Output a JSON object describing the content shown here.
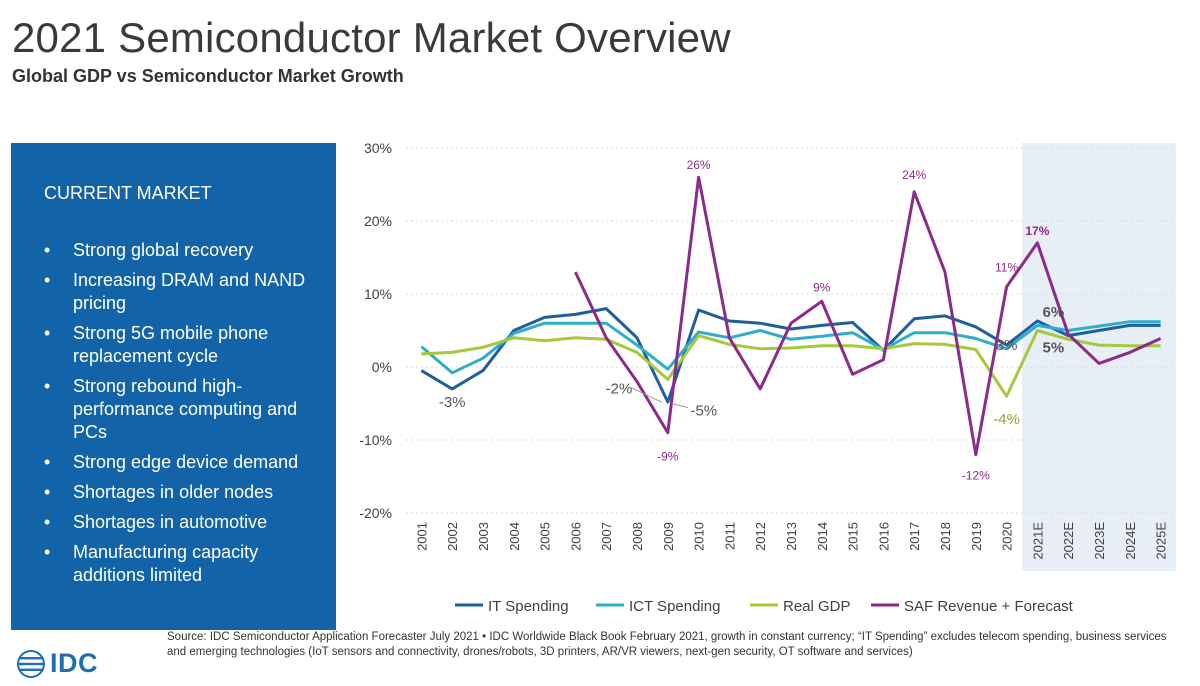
{
  "header": {
    "title": "2021 Semiconductor Market Overview",
    "subtitle": "Global GDP vs Semiconductor Market Growth"
  },
  "panel": {
    "heading": "CURRENT MARKET",
    "bullets": [
      "Strong global recovery",
      "Increasing DRAM and NAND pricing",
      "Strong 5G mobile phone replacement cycle",
      "Strong rebound high-performance computing and PCs",
      "Strong edge device demand",
      "Shortages in older nodes",
      "Shortages in automotive",
      "Manufacturing capacity additions limited"
    ]
  },
  "chart_data": {
    "type": "line",
    "categories": [
      "2001",
      "2002",
      "2003",
      "2004",
      "2005",
      "2006",
      "2007",
      "2008",
      "2009",
      "2010",
      "2011",
      "2012",
      "2013",
      "2014",
      "2015",
      "2016",
      "2017",
      "2018",
      "2019",
      "2020",
      "2021E",
      "2022E",
      "2023E",
      "2024E",
      "2025E"
    ],
    "ylim": [
      -20,
      30
    ],
    "yticks": [
      -20,
      -10,
      0,
      10,
      20,
      30
    ],
    "ytick_labels": [
      "-20%",
      "-10%",
      "0%",
      "10%",
      "20%",
      "30%"
    ],
    "forecast_region": {
      "from": "2021E",
      "to": "2025E",
      "color": "#e8eef6"
    },
    "series": [
      {
        "name": "IT Spending",
        "color": "#1f5f9e",
        "values": [
          -0.5,
          -3,
          -0.5,
          5,
          6.8,
          7.2,
          8,
          4,
          -4.8,
          7.8,
          6.3,
          6,
          5.2,
          5.7,
          6.1,
          2.3,
          6.6,
          7,
          5.5,
          3,
          6.3,
          4.3,
          5,
          5.7,
          5.7
        ]
      },
      {
        "name": "ICT Spending",
        "color": "#2eaec8",
        "values": [
          2.8,
          -0.8,
          1.2,
          4.6,
          6,
          6,
          6,
          3,
          -0.3,
          4.8,
          4,
          5,
          3.8,
          4.2,
          4.7,
          2.4,
          4.7,
          4.7,
          3.9,
          2.5,
          5.7,
          5,
          5.6,
          6.2,
          6.2
        ]
      },
      {
        "name": "Real GDP",
        "color": "#a6c83c",
        "values": [
          1.8,
          2,
          2.7,
          4,
          3.6,
          4,
          3.8,
          2,
          -1.7,
          4.3,
          3.1,
          2.5,
          2.6,
          2.9,
          2.9,
          2.5,
          3.2,
          3.1,
          2.4,
          -4,
          5,
          3.8,
          3,
          2.9,
          2.9
        ]
      },
      {
        "name": "SAF Revenue + Forecast",
        "color": "#8a2b8a",
        "values": [
          null,
          null,
          null,
          null,
          null,
          13,
          4,
          -2,
          -9,
          26,
          4,
          -3,
          6,
          9,
          -1,
          1,
          24,
          13,
          -12,
          11,
          17,
          4.5,
          0.5,
          2,
          3.9
        ]
      }
    ],
    "annotations": [
      {
        "text": "-3%",
        "color": "#555555"
      },
      {
        "text": "-2%",
        "color": "#555555"
      },
      {
        "text": "-5%",
        "color": "#555555"
      },
      {
        "text": "26%",
        "color": "#8a2b8a"
      },
      {
        "text": "-9%",
        "color": "#8a2b8a"
      },
      {
        "text": "9%",
        "color": "#8a2b8a"
      },
      {
        "text": "24%",
        "color": "#8a2b8a"
      },
      {
        "text": "-12%",
        "color": "#8a2b8a"
      },
      {
        "text": "11%",
        "color": "#8a2b8a"
      },
      {
        "text": "17%",
        "color": "#8a2b8a"
      },
      {
        "text": "3%",
        "color": "#555555"
      },
      {
        "text": "-4%",
        "color": "#8aaa2a"
      },
      {
        "text": "6%",
        "color": "#555555"
      },
      {
        "text": "5%",
        "color": "#555555"
      }
    ],
    "legend_position": "bottom"
  },
  "footer": {
    "source": "Source: IDC Semiconductor Application Forecaster July 2021 • IDC Worldwide Black Book February 2021, growth in constant currency; “IT Spending” excludes telecom spending, business services and emerging technologies (IoT sensors and connectivity, drones/robots, 3D printers, AR/VR viewers, next-gen security, OT software and services)",
    "logo_text": "IDC",
    "logo_color": "#1f6eb4"
  }
}
